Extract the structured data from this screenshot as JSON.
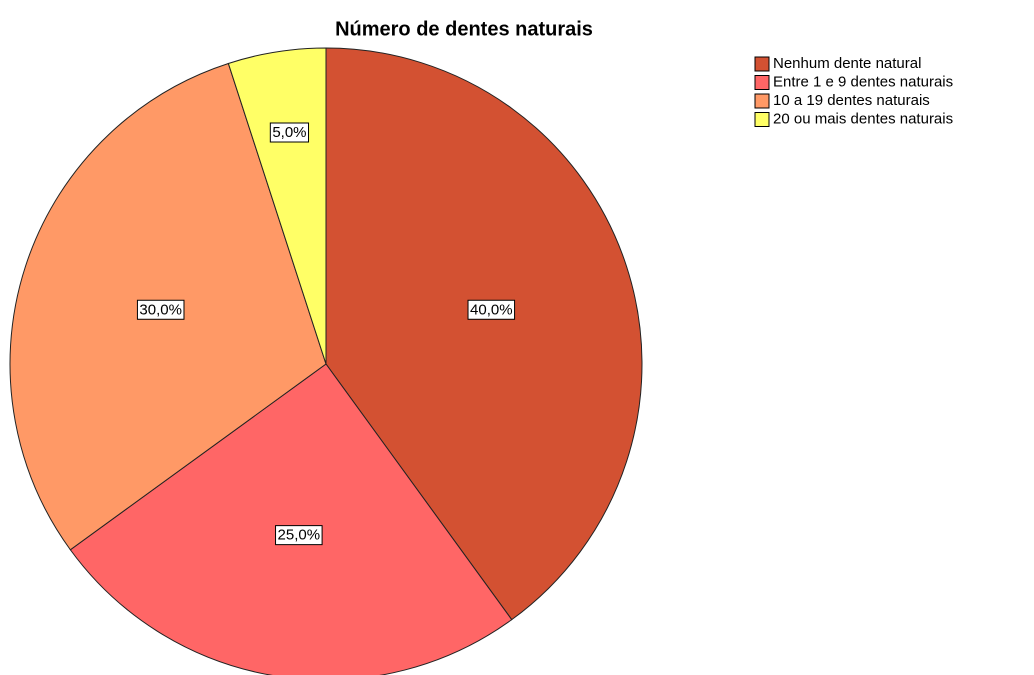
{
  "chart_data": {
    "type": "pie",
    "title": "Número de dentes naturais",
    "categories": [
      "Nenhum dente natural",
      "Entre 1 e 9 dentes naturais",
      "10 a 19 dentes naturais",
      "20 ou mais dentes naturais"
    ],
    "values": [
      40,
      25,
      30,
      5
    ],
    "value_labels": [
      "40,0%",
      "25,0%",
      "30,0%",
      "5,0%"
    ],
    "colors": [
      "#d35132",
      "#ff6666",
      "#ff9966",
      "#ffff66"
    ],
    "legend": "right"
  }
}
